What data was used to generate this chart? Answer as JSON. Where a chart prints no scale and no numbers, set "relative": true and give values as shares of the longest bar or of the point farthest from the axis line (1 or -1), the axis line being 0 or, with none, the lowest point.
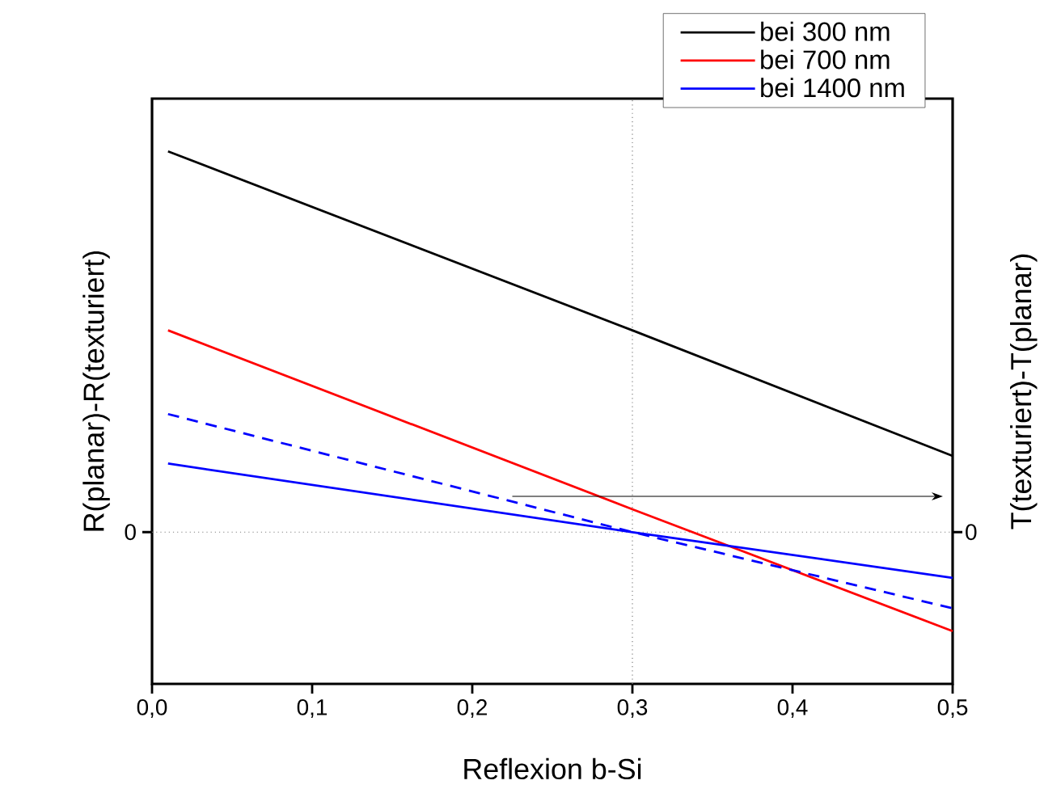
{
  "chart_data": {
    "type": "line",
    "relative": true,
    "xlabel": "Reflexion b-Si",
    "ylabel": "R(planar)-R(texturiert)",
    "y2label": "T(texturiert)-T(planar)",
    "x": [
      0.01,
      0.3,
      0.5
    ],
    "xlim": [
      0,
      0.5
    ],
    "xticks": [
      {
        "value": 0,
        "label": "0,0"
      },
      {
        "value": 0.1,
        "label": "0,1"
      },
      {
        "value": 0.2,
        "label": "0,2"
      },
      {
        "value": 0.3,
        "label": "0,3"
      },
      {
        "value": 0.4,
        "label": "0,4"
      },
      {
        "value": 0.5,
        "label": "0,5"
      }
    ],
    "series": [
      {
        "name": "bei 300 nm",
        "color": "#000000",
        "values": [
          1,
          0.53,
          0.2
        ]
      },
      {
        "name": "bei 700 nm",
        "color": "#ff0000",
        "values": [
          0.53,
          0.06,
          -0.26
        ]
      },
      {
        "name": "bei 1400 nm",
        "color": "#0000ff",
        "values": [
          0.18,
          0,
          -0.12
        ]
      },
      {
        "color": "#0000ff",
        "line_style": "dashed",
        "values": [
          0.31,
          0,
          -0.2
        ]
      }
    ],
    "ref_lines": [
      {
        "axis": "y",
        "value": 0,
        "label": "0",
        "line_style": "dotted",
        "color": "#808080"
      },
      {
        "axis": "x",
        "value": 0.3,
        "line_style": "dotted",
        "color": "#808080"
      }
    ],
    "legend": "top right",
    "line_style": "solid",
    "marker": "none",
    "grid": false
  }
}
